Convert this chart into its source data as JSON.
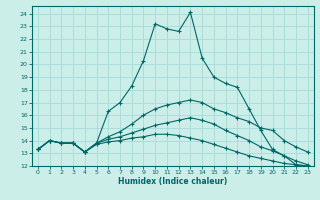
{
  "title": "",
  "xlabel": "Humidex (Indice chaleur)",
  "bg_color": "#cceee8",
  "grid_color": "#aadddd",
  "line_color": "#006666",
  "xlim": [
    -0.5,
    23.5
  ],
  "ylim": [
    12,
    24.6
  ],
  "yticks": [
    12,
    13,
    14,
    15,
    16,
    17,
    18,
    19,
    20,
    21,
    22,
    23,
    24
  ],
  "xticks": [
    0,
    1,
    2,
    3,
    4,
    5,
    6,
    7,
    8,
    9,
    10,
    11,
    12,
    13,
    14,
    15,
    16,
    17,
    18,
    19,
    20,
    21,
    22,
    23
  ],
  "lines": [
    {
      "x": [
        0,
        1,
        2,
        3,
        4,
        5,
        6,
        7,
        8,
        9,
        10,
        11,
        12,
        13,
        14,
        15,
        16,
        17,
        18,
        19,
        20,
        21,
        22,
        23
      ],
      "y": [
        13.3,
        14.0,
        13.8,
        13.8,
        13.1,
        13.8,
        16.3,
        17.0,
        18.3,
        20.3,
        23.2,
        22.8,
        22.6,
        24.1,
        20.5,
        19.0,
        18.5,
        18.2,
        16.5,
        14.8,
        13.3,
        12.8,
        12.1,
        12.0
      ]
    },
    {
      "x": [
        0,
        1,
        2,
        3,
        4,
        5,
        6,
        7,
        8,
        9,
        10,
        11,
        12,
        13,
        14,
        15,
        16,
        17,
        18,
        19,
        20,
        21,
        22,
        23
      ],
      "y": [
        13.3,
        14.0,
        13.8,
        13.8,
        13.1,
        13.8,
        14.3,
        14.7,
        15.3,
        16.0,
        16.5,
        16.8,
        17.0,
        17.2,
        17.0,
        16.5,
        16.2,
        15.8,
        15.5,
        15.0,
        14.8,
        14.0,
        13.5,
        13.1
      ]
    },
    {
      "x": [
        0,
        1,
        2,
        3,
        4,
        5,
        6,
        7,
        8,
        9,
        10,
        11,
        12,
        13,
        14,
        15,
        16,
        17,
        18,
        19,
        20,
        21,
        22,
        23
      ],
      "y": [
        13.3,
        14.0,
        13.8,
        13.8,
        13.1,
        13.8,
        14.1,
        14.3,
        14.6,
        14.9,
        15.2,
        15.4,
        15.6,
        15.8,
        15.6,
        15.3,
        14.8,
        14.4,
        14.0,
        13.5,
        13.2,
        12.8,
        12.4,
        12.1
      ]
    },
    {
      "x": [
        0,
        1,
        2,
        3,
        4,
        5,
        6,
        7,
        8,
        9,
        10,
        11,
        12,
        13,
        14,
        15,
        16,
        17,
        18,
        19,
        20,
        21,
        22,
        23
      ],
      "y": [
        13.3,
        14.0,
        13.8,
        13.8,
        13.1,
        13.7,
        13.9,
        14.0,
        14.2,
        14.3,
        14.5,
        14.5,
        14.4,
        14.2,
        14.0,
        13.7,
        13.4,
        13.1,
        12.8,
        12.6,
        12.4,
        12.2,
        12.1,
        12.0
      ]
    }
  ]
}
